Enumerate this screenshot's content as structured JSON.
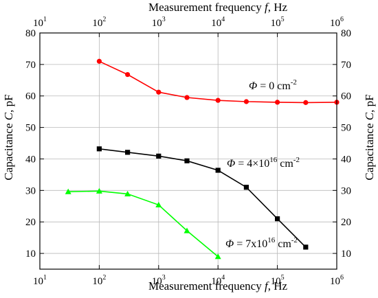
{
  "chart_data": {
    "type": "line",
    "title": "",
    "xlabel": "Measurement frequency f, Hz",
    "xlabel_parts": {
      "before": "Measurement frequency ",
      "italic": "f",
      "after": ", Hz"
    },
    "x2label": "Measurement frequency f, Hz",
    "ylabel": "Capacitance C, pF",
    "ylabel_parts": {
      "before": "Capacitance ",
      "italic": "C",
      "after": ", pF"
    },
    "y2label": "Capacitance C, pF",
    "xscale": "log",
    "xlim": [
      10,
      1000000
    ],
    "ylim": [
      5,
      80
    ],
    "x_ticks": [
      {
        "value": 10,
        "base": "10",
        "exp": "1"
      },
      {
        "value": 100,
        "base": "10",
        "exp": "2"
      },
      {
        "value": 1000,
        "base": "10",
        "exp": "3"
      },
      {
        "value": 10000,
        "base": "10",
        "exp": "4"
      },
      {
        "value": 100000,
        "base": "10",
        "exp": "5"
      },
      {
        "value": 1000000,
        "base": "10",
        "exp": "6"
      }
    ],
    "y_ticks": [
      10,
      20,
      30,
      40,
      50,
      60,
      70,
      80
    ],
    "grid": true,
    "series": [
      {
        "label_parts": {
          "symbol": "Φ",
          "text": " = 0 cm",
          "sup": "-2"
        },
        "color": "#ff0000",
        "marker": "circle",
        "x": [
          100,
          300,
          1000,
          3000,
          10000,
          30000,
          100000,
          300000,
          1000000
        ],
        "y": [
          71.0,
          66.8,
          61.2,
          59.5,
          58.6,
          58.2,
          58.0,
          57.9,
          58.0
        ]
      },
      {
        "label_parts": {
          "symbol": "Φ",
          "text": " = 4×10",
          "sup": "16",
          "text2": " cm",
          "sup2": "-2"
        },
        "color": "#000000",
        "marker": "square",
        "x": [
          100,
          300,
          1000,
          3000,
          10000,
          30000,
          100000,
          300000
        ],
        "y": [
          43.2,
          42.1,
          40.9,
          39.4,
          36.4,
          31.0,
          21.0,
          12.0
        ]
      },
      {
        "label_parts": {
          "symbol": "Φ",
          "text": " = 7x10",
          "sup": "16",
          "text2": " cm",
          "sup2": "-2"
        },
        "color": "#00ff00",
        "marker": "triangle",
        "x": [
          30,
          100,
          300,
          1000,
          3000,
          10000
        ],
        "y": [
          29.6,
          29.8,
          28.9,
          25.4,
          17.2,
          9.0
        ]
      }
    ]
  }
}
